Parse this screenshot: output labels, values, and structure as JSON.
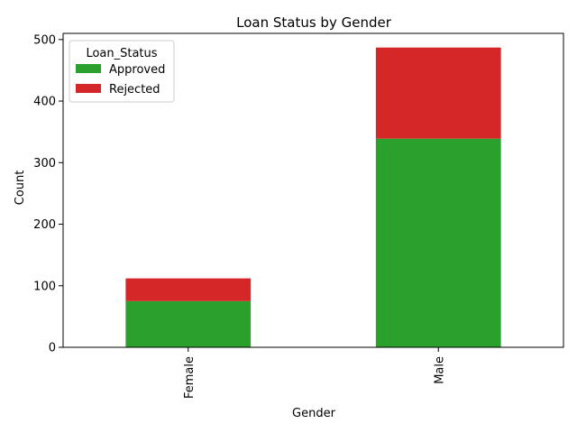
{
  "chart_data": {
    "type": "bar",
    "stacked": true,
    "title": "Loan Status by Gender",
    "xlabel": "Gender",
    "ylabel": "Count",
    "categories": [
      "Female",
      "Male"
    ],
    "series": [
      {
        "name": "Approved",
        "values": [
          75,
          339
        ],
        "color": "#2ca02c"
      },
      {
        "name": "Rejected",
        "values": [
          37,
          148
        ],
        "color": "#d62728"
      }
    ],
    "ylim": [
      0,
      510
    ],
    "yticks": [
      0,
      100,
      200,
      300,
      400,
      500
    ],
    "legend": {
      "title": "Loan_Status",
      "placement": "top-left"
    },
    "grid": false
  }
}
